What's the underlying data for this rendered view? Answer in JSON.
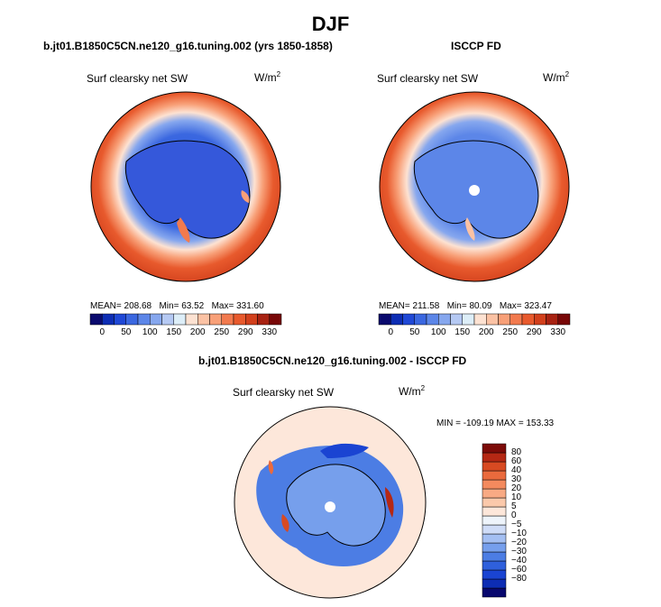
{
  "page": {
    "title": "DJF"
  },
  "panels": [
    {
      "subtitle": "b.jt01.B1850C5CN.ne120_g16.tuning.002 (yrs 1850-1858)",
      "field": "Surf clearsky net SW",
      "units_base": "W/m",
      "units_exp": "2",
      "stats": {
        "mean_label": "MEAN=",
        "mean": "208.68",
        "min_label": "Min=",
        "min": "63.52",
        "max_label": "Max=",
        "max": "331.60"
      }
    },
    {
      "subtitle": "ISCCP FD",
      "field": "Surf clearsky net SW",
      "units_base": "W/m",
      "units_exp": "2",
      "stats": {
        "mean_label": "MEAN=",
        "mean": "211.58",
        "min_label": "Min=",
        "min": "80.09",
        "max_label": "Max=",
        "max": "323.47"
      }
    },
    {
      "subtitle": "b.jt01.B1850C5CN.ne120_g16.tuning.002 - ISCCP FD",
      "field": "Surf clearsky net SW",
      "units_base": "W/m",
      "units_exp": "2",
      "minmax_label": "MIN = -109.19 MAX = 153.33"
    }
  ],
  "colorbar_top": {
    "colors": [
      "#0a0a6e",
      "#0d2db4",
      "#1f48d6",
      "#3a67e0",
      "#5c86e8",
      "#86a7ee",
      "#b5c9f3",
      "#ddeef8",
      "#fde2d2",
      "#fbc2a4",
      "#f8a078",
      "#f27a4e",
      "#e85a2d",
      "#d2401c",
      "#a82212",
      "#780707"
    ],
    "ticks": [
      "0",
      "50",
      "100",
      "150",
      "200",
      "250",
      "290",
      "330"
    ]
  },
  "colorbar_diff": {
    "colors": [
      "#08086e",
      "#0d2db4",
      "#1a44d2",
      "#2f60dc",
      "#4c7de4",
      "#769fec",
      "#a4bff2",
      "#cfdcf7",
      "#eef4fb",
      "#fde7da",
      "#fbc9ab",
      "#f8aa84",
      "#f38a5e",
      "#ea6a3d",
      "#d84a22",
      "#b52814",
      "#7c0b08"
    ],
    "labels": [
      "80",
      "60",
      "40",
      "30",
      "20",
      "10",
      "5",
      "0",
      "−5",
      "−10",
      "−20",
      "−30",
      "−40",
      "−60",
      "−80"
    ]
  }
}
